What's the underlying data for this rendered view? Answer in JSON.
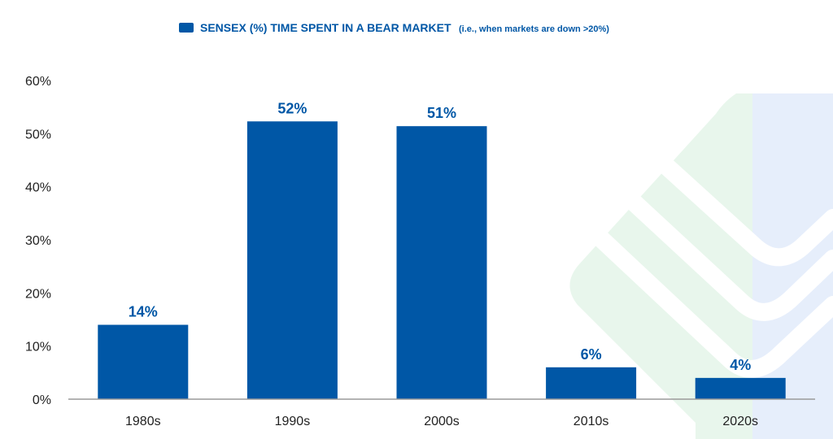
{
  "chart_data": {
    "type": "bar",
    "categories": [
      "1980s",
      "1990s",
      "2000s",
      "2010s",
      "2020s"
    ],
    "values": [
      14,
      52.3,
      51.4,
      6,
      4
    ],
    "data_labels": [
      "14%",
      "52%",
      "51%",
      "6%",
      "4%"
    ],
    "y_ticks": [
      0,
      10,
      20,
      30,
      40,
      50,
      60
    ],
    "y_tick_labels": [
      "0%",
      "10%",
      "20%",
      "30%",
      "40%",
      "50%",
      "60%"
    ],
    "ylim": [
      0,
      60
    ],
    "grid": false,
    "legend_position": "top-center",
    "series": [
      {
        "name": "SENSEX (%) TIME SPENT IN A BEAR MARKET",
        "note": "(i.e., when markets are down >20%)",
        "color": "#0057a6"
      }
    ]
  }
}
